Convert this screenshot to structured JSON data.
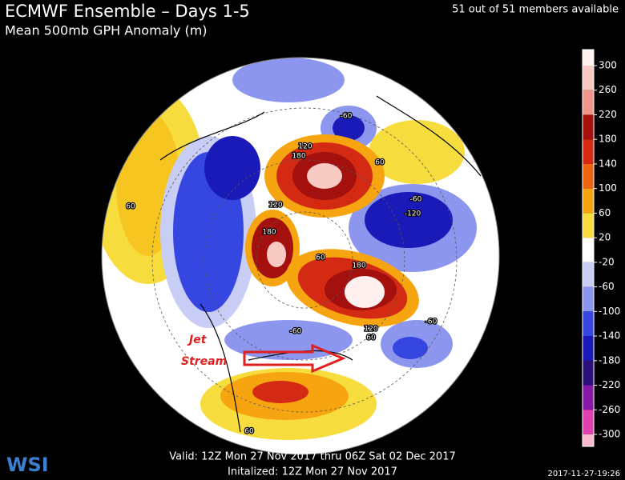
{
  "header": {
    "title": "ECMWF Ensemble – Days 1-5",
    "subtitle": "Mean 500mb GPH Anomaly (m)",
    "members": "51 out of 51 members available"
  },
  "colorbar": {
    "labels": [
      "300",
      "260",
      "220",
      "180",
      "140",
      "100",
      "60",
      "20",
      "-20",
      "-60",
      "-100",
      "-140",
      "-180",
      "-220",
      "-260",
      "-300"
    ],
    "colors": [
      "#fff0f0",
      "#f8cac4",
      "#ef9488",
      "#a4100e",
      "#d42a14",
      "#ee6410",
      "#f6a510",
      "#f6dc3c",
      "#ffffff",
      "#c8cdf6",
      "#8c96ee",
      "#3646e0",
      "#1a1ab8",
      "#2a107a",
      "#8818a8",
      "#e040b0",
      "#f8b8d0"
    ]
  },
  "map_labels": [
    "-60",
    "120",
    "180",
    "60",
    "-60",
    "-120",
    "120",
    "180",
    "60",
    "180",
    "60",
    "-60",
    "120",
    "60",
    "-60",
    "60"
  ],
  "annotation": {
    "line1": "Jet",
    "line2": "Stream"
  },
  "footer": {
    "valid": "Valid: 12Z Mon 27 Nov 2017 thru 06Z Sat 02 Dec 2017",
    "initialized": "Initalized: 12Z Mon 27 Nov 2017",
    "logo": "WSI",
    "timestamp": "2017-11-27-19:26"
  }
}
